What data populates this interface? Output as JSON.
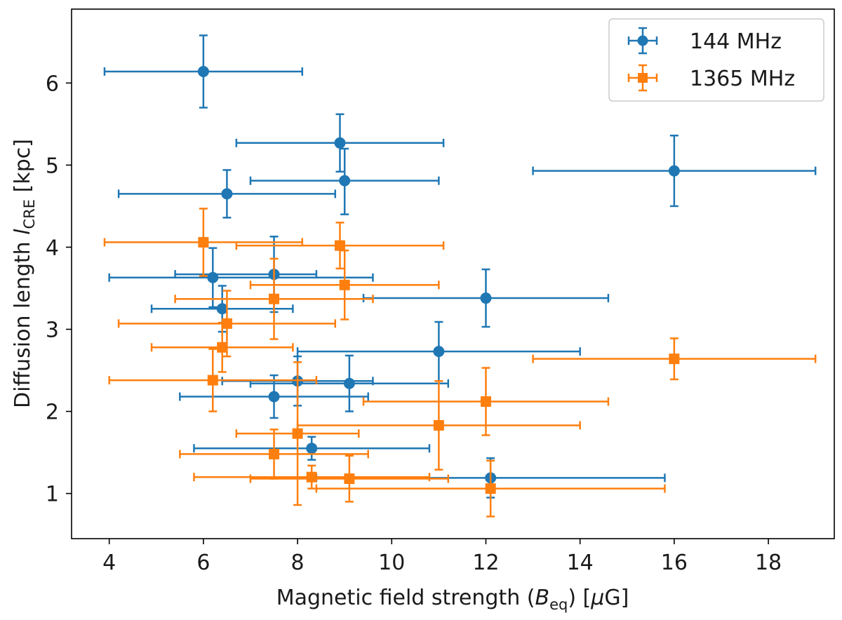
{
  "chart_data": {
    "type": "scatter",
    "title": "",
    "xlabel": {
      "prefix": "Magnetic field strength (",
      "symbol": "B",
      "subscript": "eq",
      "suffix": ") [",
      "unit_greek": "μ",
      "unit": "G]"
    },
    "ylabel": {
      "prefix": "Diffusion length ",
      "symbol": "l",
      "subscript": "CRE",
      "suffix": " [kpc]"
    },
    "xlim": [
      3.2,
      19.4
    ],
    "ylim": [
      0.45,
      6.9
    ],
    "xticks": [
      4,
      6,
      8,
      10,
      12,
      14,
      16,
      18
    ],
    "yticks": [
      1,
      2,
      3,
      4,
      5,
      6
    ],
    "grid": false,
    "legend_position": "top-right",
    "series": [
      {
        "name": "144 MHz",
        "color": "#1f77b4",
        "marker": "circle",
        "points": [
          {
            "x": 6.0,
            "y": 6.14,
            "xlo": 3.9,
            "xhi": 8.1,
            "ylo": 5.7,
            "yhi": 6.58
          },
          {
            "x": 8.9,
            "y": 5.27,
            "xlo": 6.7,
            "xhi": 11.1,
            "ylo": 4.92,
            "yhi": 5.62
          },
          {
            "x": 16.0,
            "y": 4.93,
            "xlo": 13.0,
            "xhi": 19.0,
            "ylo": 4.5,
            "yhi": 5.36
          },
          {
            "x": 9.0,
            "y": 4.81,
            "xlo": 7.0,
            "xhi": 11.0,
            "ylo": 4.4,
            "yhi": 5.2
          },
          {
            "x": 6.5,
            "y": 4.65,
            "xlo": 4.2,
            "xhi": 8.8,
            "ylo": 4.36,
            "yhi": 4.94
          },
          {
            "x": 6.2,
            "y": 3.63,
            "xlo": 4.0,
            "xhi": 9.6,
            "ylo": 3.27,
            "yhi": 3.99
          },
          {
            "x": 7.5,
            "y": 3.67,
            "xlo": 5.4,
            "xhi": 8.4,
            "ylo": 3.21,
            "yhi": 4.13
          },
          {
            "x": 12.0,
            "y": 3.38,
            "xlo": 9.4,
            "xhi": 14.6,
            "ylo": 3.03,
            "yhi": 3.73
          },
          {
            "x": 6.4,
            "y": 3.25,
            "xlo": 4.9,
            "xhi": 7.9,
            "ylo": 2.97,
            "yhi": 3.53
          },
          {
            "x": 11.0,
            "y": 2.73,
            "xlo": 8.0,
            "xhi": 14.0,
            "ylo": 2.37,
            "yhi": 3.09
          },
          {
            "x": 8.0,
            "y": 2.37,
            "xlo": 6.4,
            "xhi": 9.6,
            "ylo": 2.07,
            "yhi": 2.67
          },
          {
            "x": 9.1,
            "y": 2.34,
            "xlo": 7.0,
            "xhi": 11.2,
            "ylo": 2.0,
            "yhi": 2.68
          },
          {
            "x": 7.5,
            "y": 2.18,
            "xlo": 5.5,
            "xhi": 9.5,
            "ylo": 1.92,
            "yhi": 2.44
          },
          {
            "x": 8.3,
            "y": 1.55,
            "xlo": 5.8,
            "xhi": 10.8,
            "ylo": 1.41,
            "yhi": 1.69
          },
          {
            "x": 12.1,
            "y": 1.19,
            "xlo": 8.4,
            "xhi": 15.8,
            "ylo": 0.95,
            "yhi": 1.43
          }
        ]
      },
      {
        "name": "1365 MHz",
        "color": "#ff7f0e",
        "marker": "square",
        "points": [
          {
            "x": 6.0,
            "y": 4.06,
            "xlo": 3.9,
            "xhi": 8.1,
            "ylo": 3.65,
            "yhi": 4.47
          },
          {
            "x": 8.9,
            "y": 4.02,
            "xlo": 6.7,
            "xhi": 11.1,
            "ylo": 3.74,
            "yhi": 4.3
          },
          {
            "x": 9.0,
            "y": 3.54,
            "xlo": 7.0,
            "xhi": 11.0,
            "ylo": 3.12,
            "yhi": 3.96
          },
          {
            "x": 7.5,
            "y": 3.37,
            "xlo": 5.4,
            "xhi": 9.6,
            "ylo": 2.88,
            "yhi": 3.86
          },
          {
            "x": 6.5,
            "y": 3.07,
            "xlo": 4.2,
            "xhi": 8.8,
            "ylo": 2.67,
            "yhi": 3.47
          },
          {
            "x": 6.4,
            "y": 2.78,
            "xlo": 4.9,
            "xhi": 7.9,
            "ylo": 2.48,
            "yhi": 3.08
          },
          {
            "x": 16.0,
            "y": 2.64,
            "xlo": 13.0,
            "xhi": 19.0,
            "ylo": 2.39,
            "yhi": 2.89
          },
          {
            "x": 6.2,
            "y": 2.38,
            "xlo": 4.0,
            "xhi": 8.4,
            "ylo": 2.0,
            "yhi": 2.76
          },
          {
            "x": 12.0,
            "y": 2.12,
            "xlo": 9.4,
            "xhi": 14.6,
            "ylo": 1.71,
            "yhi": 2.53
          },
          {
            "x": 11.0,
            "y": 1.83,
            "xlo": 8.0,
            "xhi": 14.0,
            "ylo": 1.29,
            "yhi": 2.37
          },
          {
            "x": 8.0,
            "y": 1.73,
            "xlo": 6.7,
            "xhi": 9.3,
            "ylo": 0.86,
            "yhi": 2.6
          },
          {
            "x": 7.5,
            "y": 1.48,
            "xlo": 5.5,
            "xhi": 9.5,
            "ylo": 1.18,
            "yhi": 1.78
          },
          {
            "x": 8.3,
            "y": 1.2,
            "xlo": 5.8,
            "xhi": 10.8,
            "ylo": 1.06,
            "yhi": 1.34
          },
          {
            "x": 9.1,
            "y": 1.18,
            "xlo": 7.0,
            "xhi": 11.2,
            "ylo": 0.9,
            "yhi": 1.46
          },
          {
            "x": 12.1,
            "y": 1.06,
            "xlo": 8.4,
            "xhi": 15.8,
            "ylo": 0.72,
            "yhi": 1.4
          }
        ]
      }
    ]
  }
}
